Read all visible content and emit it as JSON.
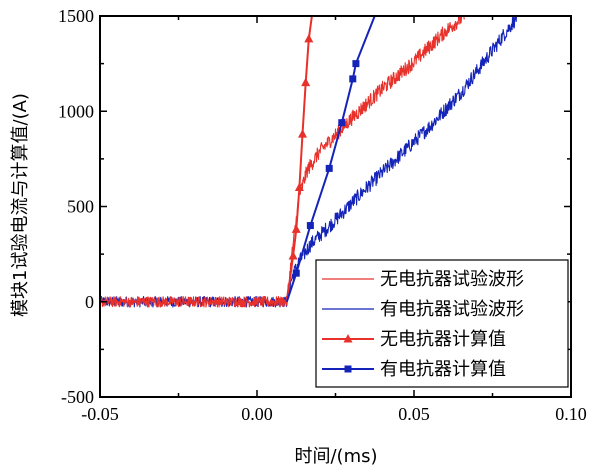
{
  "chart_data": {
    "type": "line",
    "title": "",
    "xlabel": "时间/(ms)",
    "ylabel": "模块1试验电流与计算值/(A)",
    "xlim": [
      -0.05,
      0.1
    ],
    "ylim": [
      -500,
      1500
    ],
    "x_ticks": [
      -0.05,
      0.0,
      0.05,
      0.1
    ],
    "x_tick_labels": [
      "-0.05",
      "0.00",
      "0.05",
      "0.10"
    ],
    "y_ticks": [
      -500,
      0,
      500,
      1000,
      1500
    ],
    "y_tick_labels": [
      "-500",
      "0",
      "500",
      "1000",
      "1500"
    ],
    "grid": false,
    "legend_position": "bottom-right",
    "series": [
      {
        "name": "无电抗器试验波形",
        "style": "noisy-line",
        "color": "#e8312b",
        "marker": "none",
        "x": [
          -0.05,
          0.0,
          0.0095,
          0.0115,
          0.0135,
          0.016,
          0.02,
          0.03,
          0.04,
          0.05,
          0.06,
          0.066
        ],
        "y": [
          0,
          0,
          0,
          300,
          560,
          690,
          790,
          960,
          1120,
          1260,
          1420,
          1500
        ]
      },
      {
        "name": "有电抗器试验波形",
        "style": "noisy-line",
        "color": "#1524b8",
        "marker": "none",
        "x": [
          -0.05,
          0.0,
          0.0095,
          0.011,
          0.013,
          0.017,
          0.025,
          0.035,
          0.045,
          0.055,
          0.065,
          0.075,
          0.083
        ],
        "y": [
          0,
          0,
          0,
          120,
          200,
          300,
          430,
          600,
          760,
          920,
          1100,
          1320,
          1500
        ]
      },
      {
        "name": "无电抗器计算值",
        "style": "line-marker",
        "color": "#e8312b",
        "marker": "triangle",
        "x": [
          0.0095,
          0.0115,
          0.0125,
          0.0135,
          0.0145,
          0.0155,
          0.0165,
          0.0175
        ],
        "y": [
          0,
          240,
          380,
          600,
          880,
          1150,
          1380,
          1500
        ]
      },
      {
        "name": "有电抗器计算值",
        "style": "line-marker",
        "color": "#1524b8",
        "marker": "square",
        "x": [
          0.0095,
          0.0125,
          0.017,
          0.023,
          0.027,
          0.0305,
          0.0315,
          0.0375
        ],
        "y": [
          0,
          150,
          400,
          700,
          940,
          1170,
          1250,
          1500
        ]
      }
    ]
  }
}
